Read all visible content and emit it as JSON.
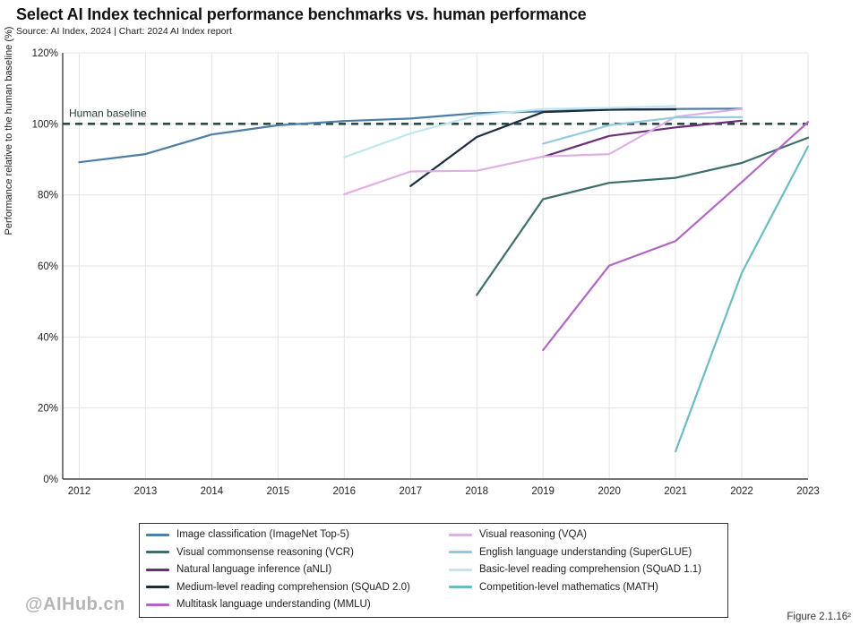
{
  "header": {
    "title": "Select AI Index technical performance benchmarks vs. human performance",
    "subtitle": "Source: AI Index, 2024 | Chart: 2024 AI Index report"
  },
  "figure_label": "Figure 2.1.16²",
  "watermark": "@AIHub.cn",
  "colors": {
    "baseline": "#2a4a48",
    "axis": "#222222",
    "grid": "#e4e4e4"
  },
  "chart_data": {
    "type": "line",
    "title": "Select AI Index technical performance benchmarks vs. human performance",
    "xlabel": "",
    "ylabel": "Performance relative to the human baseline (%)",
    "x": [
      2012,
      2013,
      2014,
      2015,
      2016,
      2017,
      2018,
      2019,
      2020,
      2021,
      2022,
      2023
    ],
    "ylim": [
      0,
      120
    ],
    "yticks": [
      0,
      20,
      40,
      60,
      80,
      100,
      120
    ],
    "ytick_labels": [
      "0%",
      "20%",
      "40%",
      "60%",
      "80%",
      "100%",
      "120%"
    ],
    "grid": true,
    "baseline": {
      "label": "Human baseline",
      "value": 100
    },
    "series": [
      {
        "name": "Image classification (ImageNet Top-5)",
        "color": "#4e7ea5",
        "points": [
          [
            2012,
            89.2
          ],
          [
            2013,
            91.5
          ],
          [
            2014,
            97.0
          ],
          [
            2015,
            99.6
          ],
          [
            2016,
            100.8
          ],
          [
            2017,
            101.5
          ],
          [
            2018,
            103.0
          ],
          [
            2019,
            103.5
          ],
          [
            2020,
            104.0
          ],
          [
            2021,
            104.2
          ],
          [
            2022,
            104.3
          ]
        ]
      },
      {
        "name": "Visual commonsense reasoning (VCR)",
        "color": "#3e6e6c",
        "points": [
          [
            2018,
            51.8
          ],
          [
            2019,
            78.8
          ],
          [
            2020,
            83.4
          ],
          [
            2021,
            84.8
          ],
          [
            2022,
            89.0
          ],
          [
            2023,
            96.1
          ]
        ]
      },
      {
        "name": "Natural language inference (aNLI)",
        "color": "#6b2f78",
        "points": [
          [
            2019,
            90.7
          ],
          [
            2020,
            96.6
          ],
          [
            2021,
            99.0
          ],
          [
            2022,
            100.9
          ]
        ]
      },
      {
        "name": "Medium-level reading comprehension (SQuAD 2.0)",
        "color": "#1c2b40",
        "points": [
          [
            2017,
            82.5
          ],
          [
            2018,
            96.3
          ],
          [
            2019,
            103.3
          ],
          [
            2020,
            104.0
          ],
          [
            2021,
            104.1
          ]
        ]
      },
      {
        "name": "Multitask language understanding (MMLU)",
        "color": "#b367c4",
        "points": [
          [
            2019,
            36.3
          ],
          [
            2020,
            60.1
          ],
          [
            2021,
            67.0
          ],
          [
            2022,
            83.6
          ],
          [
            2023,
            100.5
          ]
        ]
      },
      {
        "name": "Visual reasoning (VQA)",
        "color": "#dfb0e4",
        "points": [
          [
            2016,
            80.2
          ],
          [
            2017,
            86.6
          ],
          [
            2018,
            86.8
          ],
          [
            2019,
            90.8
          ],
          [
            2020,
            91.5
          ],
          [
            2021,
            102.0
          ],
          [
            2022,
            104.2
          ]
        ]
      },
      {
        "name": "English language understanding (SuperGLUE)",
        "color": "#92cbe0",
        "points": [
          [
            2019,
            94.4
          ],
          [
            2020,
            99.6
          ],
          [
            2021,
            101.8
          ],
          [
            2022,
            101.9
          ]
        ]
      },
      {
        "name": "Basic-level reading comprehension (SQuAD 1.1)",
        "color": "#bfe6f0",
        "points": [
          [
            2016,
            90.6
          ],
          [
            2017,
            97.3
          ],
          [
            2018,
            102.4
          ],
          [
            2019,
            104.2
          ],
          [
            2020,
            104.5
          ],
          [
            2021,
            105.0
          ]
        ]
      },
      {
        "name": "Competition-level mathematics (MATH)",
        "color": "#6bbcc4",
        "points": [
          [
            2021,
            7.8
          ],
          [
            2022,
            58.0
          ],
          [
            2023,
            93.6
          ]
        ]
      }
    ]
  }
}
